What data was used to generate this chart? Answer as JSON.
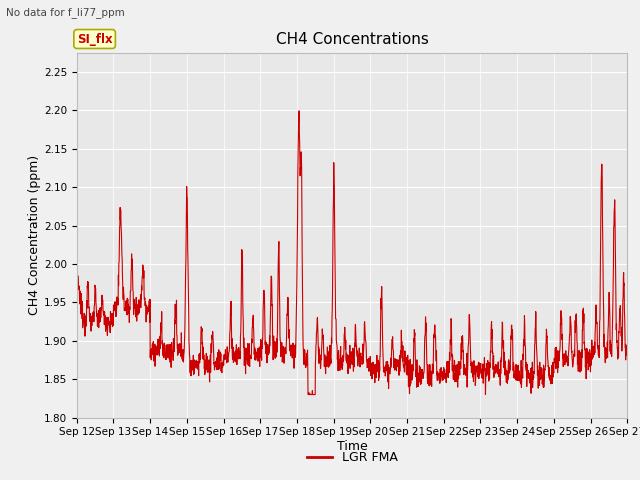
{
  "title": "CH4 Concentrations",
  "xlabel": "Time",
  "ylabel": "CH4 Concentration (ppm)",
  "top_left_text": "No data for f_li77_ppm",
  "ylim": [
    1.8,
    2.275
  ],
  "yticks": [
    1.8,
    1.85,
    1.9,
    1.95,
    2.0,
    2.05,
    2.1,
    2.15,
    2.2,
    2.25
  ],
  "x_labels": [
    "Sep 12",
    "Sep 13",
    "Sep 14",
    "Sep 15",
    "Sep 16",
    "Sep 17",
    "Sep 18",
    "Sep 19",
    "Sep 20",
    "Sep 21",
    "Sep 22",
    "Sep 23",
    "Sep 24",
    "Sep 25",
    "Sep 26",
    "Sep 27"
  ],
  "line_color": "#cc0000",
  "line_width": 0.8,
  "background_color": "#f0f0f0",
  "plot_bg_color": "#e8e8e8",
  "legend_label": "LGR FMA",
  "si_flx_label": "SI_flx",
  "si_flx_bg": "#ffffcc",
  "si_flx_border": "#aaaa00",
  "title_fontsize": 11,
  "axis_label_fontsize": 9,
  "tick_fontsize": 7.5
}
